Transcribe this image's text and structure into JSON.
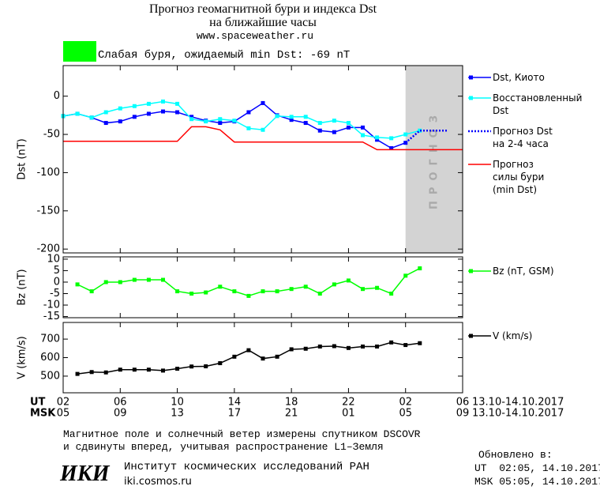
{
  "header": {
    "title_lines": [
      "Прогноз геомагнитной бури и индекса Dst",
      "на ближайшие часы"
    ],
    "url": "www.spaceweather.ru",
    "status": "Слабая буря, ожидаемый min Dst: -69 nT",
    "status_color": "#00ff00"
  },
  "chart_data": [
    {
      "type": "line",
      "ylabel": "Dst (nT)",
      "ylim": [
        -205,
        40
      ],
      "yticks": [
        0,
        -50,
        -100,
        -150,
        -200
      ],
      "forecast_region": {
        "xlim": [
          24,
          28
        ],
        "label": "ПРОГНОЗ",
        "color": "#d3d3d3"
      },
      "series": [
        {
          "name": "Dst, Киото",
          "color": "#0000ff",
          "marker": true,
          "x": [
            0,
            1,
            2,
            3,
            4,
            5,
            6,
            7,
            8,
            9,
            10,
            11,
            12,
            13,
            14,
            15,
            16,
            17,
            18,
            19,
            20,
            21,
            22,
            23,
            24
          ],
          "values": [
            -26,
            -23,
            -28,
            -35,
            -33,
            -27,
            -23,
            -20,
            -21,
            -27,
            -32,
            -35,
            -33,
            -21,
            -9,
            -25,
            -31,
            -35,
            -45,
            -47,
            -41,
            -41,
            -57,
            -68,
            -61
          ]
        },
        {
          "name": "Восстановленный\nDst",
          "color": "#00ffff",
          "marker": true,
          "x": [
            0,
            1,
            2,
            3,
            4,
            5,
            6,
            7,
            8,
            9,
            10,
            11,
            12,
            13,
            14,
            15,
            16,
            17,
            18,
            19,
            20,
            21,
            22,
            23,
            24,
            25
          ],
          "values": [
            -26,
            -23,
            -28,
            -21,
            -16,
            -13,
            -10,
            -7,
            -10,
            -30,
            -33,
            -30,
            -32,
            -42,
            -44,
            -26,
            -27,
            -27,
            -35,
            -32,
            -35,
            -51,
            -54,
            -55,
            -50,
            -45
          ]
        },
        {
          "name": "Прогноз Dst\nна 2-4 часа",
          "color": "#0000ff",
          "marker": false,
          "dash": "dotted",
          "x": [
            24,
            25,
            26,
            27
          ],
          "values": [
            -61,
            -45,
            -45,
            -45
          ]
        },
        {
          "name": "Прогноз\nсилы бури\n(min Dst)",
          "color": "#ff0000",
          "marker": false,
          "x": [
            0,
            8,
            9,
            10,
            11,
            12,
            21,
            22,
            28
          ],
          "values": [
            -59,
            -59,
            -40,
            -40,
            -44,
            -60,
            -60,
            -70,
            -70
          ]
        }
      ]
    },
    {
      "type": "line",
      "ylabel": "Bz (nT)",
      "ylim": [
        -15.5,
        11
      ],
      "yticks": [
        10,
        5,
        0,
        -5,
        -10,
        -15
      ],
      "series": [
        {
          "name": "Bz (nT, GSM)",
          "color": "#00ff00",
          "marker": true,
          "x": [
            1,
            2,
            3,
            4,
            5,
            6,
            7,
            8,
            9,
            10,
            11,
            12,
            13,
            14,
            15,
            16,
            17,
            18,
            19,
            20,
            21,
            22,
            23,
            24,
            25
          ],
          "values": [
            -1,
            -4,
            0,
            0,
            1,
            1,
            1,
            -4,
            -5,
            -4.5,
            -2,
            -4,
            -6,
            -4,
            -4,
            -3,
            -2,
            -5,
            -1,
            0.7,
            -3,
            -2.5,
            -5,
            2.8,
            6
          ]
        }
      ]
    },
    {
      "type": "line",
      "ylabel": "V (km/s)",
      "ylim": [
        410,
        790
      ],
      "yticks": [
        700,
        600,
        500
      ],
      "xlim": [
        0,
        28
      ],
      "xticks": [
        {
          "value": 0,
          "label": "02"
        },
        {
          "value": 4,
          "label": "06"
        },
        {
          "value": 8,
          "label": "10"
        },
        {
          "value": 12,
          "label": "14"
        },
        {
          "value": 16,
          "label": "18"
        },
        {
          "value": 20,
          "label": "22"
        },
        {
          "value": 24,
          "label": "02"
        },
        {
          "value": 28,
          "label": "06"
        }
      ],
      "xticks_msk": [
        {
          "value": 0,
          "label": "05"
        },
        {
          "value": 4,
          "label": "09"
        },
        {
          "value": 8,
          "label": "13"
        },
        {
          "value": 12,
          "label": "17"
        },
        {
          "value": 16,
          "label": "21"
        },
        {
          "value": 20,
          "label": "01"
        },
        {
          "value": 24,
          "label": "05"
        },
        {
          "value": 28,
          "label": "09"
        }
      ],
      "x_rows": [
        "UT",
        "MSK"
      ],
      "date_range": "13.10-14.10.2017",
      "series": [
        {
          "name": "V (km/s)",
          "color": "#000000",
          "marker": true,
          "x": [
            1,
            2,
            3,
            4,
            5,
            6,
            7,
            8,
            9,
            10,
            11,
            12,
            13,
            14,
            15,
            16,
            17,
            18,
            19,
            20,
            21,
            22,
            23,
            24,
            25
          ],
          "values": [
            512,
            522,
            520,
            535,
            535,
            535,
            530,
            540,
            552,
            553,
            570,
            605,
            640,
            595,
            605,
            645,
            648,
            660,
            662,
            652,
            660,
            660,
            682,
            668,
            678
          ]
        }
      ]
    }
  ],
  "footer": {
    "notes": [
      "Магнитное поле и солнечный ветер измерены спутником DSCOVR",
      "и сдвинуты вперед, учитывая распространение L1–Земля"
    ],
    "logo": "ИКИ",
    "institute": "Институт космических исследований РАН",
    "site": "iki.cosmos.ru",
    "updated_title": "Обновлено в:",
    "updated_ut": "UT  02:05, 14.10.2017",
    "updated_msk": "MSK 05:05, 14.10.2017"
  }
}
